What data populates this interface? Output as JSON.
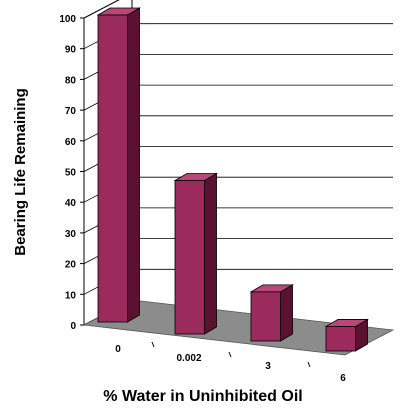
{
  "chart_data": {
    "type": "bar",
    "categories": [
      "0",
      "0.002",
      "3",
      "6"
    ],
    "values": [
      100,
      50,
      16,
      8
    ],
    "xlabel": "% Water in Uninhibited Oil",
    "ylabel": "Bearing Life Remaining",
    "ylim": [
      0,
      100
    ],
    "yticks": [
      "0",
      "10",
      "20",
      "30",
      "40",
      "50",
      "60",
      "70",
      "80",
      "90",
      "100"
    ],
    "grid": true,
    "legend": "none",
    "three_d": true,
    "colors": {
      "bar_front": "#9b2b5c",
      "bar_side": "#5a1230",
      "bar_top": "#b8487a",
      "floor": "#8c8c8c",
      "gridline": "#000000"
    }
  }
}
